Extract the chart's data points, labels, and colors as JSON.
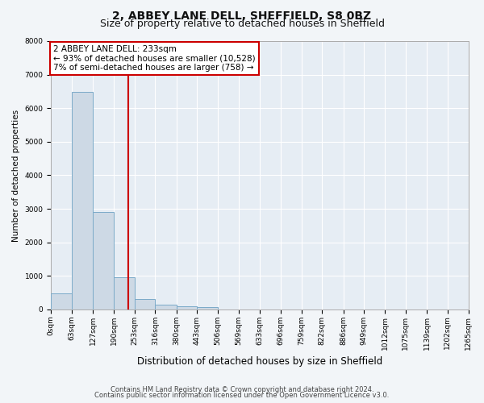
{
  "title1": "2, ABBEY LANE DELL, SHEFFIELD, S8 0BZ",
  "title2": "Size of property relative to detached houses in Sheffield",
  "xlabel": "Distribution of detached houses by size in Sheffield",
  "ylabel": "Number of detached properties",
  "bar_edges": [
    0,
    63,
    127,
    190,
    253,
    316,
    380,
    443,
    506,
    569,
    633,
    696,
    759,
    822,
    886,
    949,
    1012,
    1075,
    1139,
    1202,
    1265
  ],
  "bar_heights": [
    490,
    6480,
    2900,
    950,
    320,
    145,
    100,
    60,
    0,
    0,
    0,
    0,
    0,
    0,
    0,
    0,
    0,
    0,
    0,
    0
  ],
  "bar_color": "#cdd9e5",
  "bar_edge_color": "#7baac8",
  "vline_x": 233,
  "vline_color": "#cc0000",
  "annotation_text": "2 ABBEY LANE DELL: 233sqm\n← 93% of detached houses are smaller (10,528)\n7% of semi-detached houses are larger (758) →",
  "annotation_box_color": "#cc0000",
  "ylim": [
    0,
    8000
  ],
  "yticks": [
    0,
    1000,
    2000,
    3000,
    4000,
    5000,
    6000,
    7000,
    8000
  ],
  "tick_labels": [
    "0sqm",
    "63sqm",
    "127sqm",
    "190sqm",
    "253sqm",
    "316sqm",
    "380sqm",
    "443sqm",
    "506sqm",
    "569sqm",
    "633sqm",
    "696sqm",
    "759sqm",
    "822sqm",
    "886sqm",
    "949sqm",
    "1012sqm",
    "1075sqm",
    "1139sqm",
    "1202sqm",
    "1265sqm"
  ],
  "footer1": "Contains HM Land Registry data © Crown copyright and database right 2024.",
  "footer2": "Contains public sector information licensed under the Open Government Licence v3.0.",
  "bg_color": "#f2f5f8",
  "plot_bg_color": "#e6edf4",
  "grid_color": "#ffffff",
  "title1_fontsize": 10,
  "title2_fontsize": 9,
  "tick_label_fontsize": 6.5,
  "ylabel_fontsize": 7.5,
  "xlabel_fontsize": 8.5,
  "footer_fontsize": 6,
  "ann_fontsize": 7.5
}
